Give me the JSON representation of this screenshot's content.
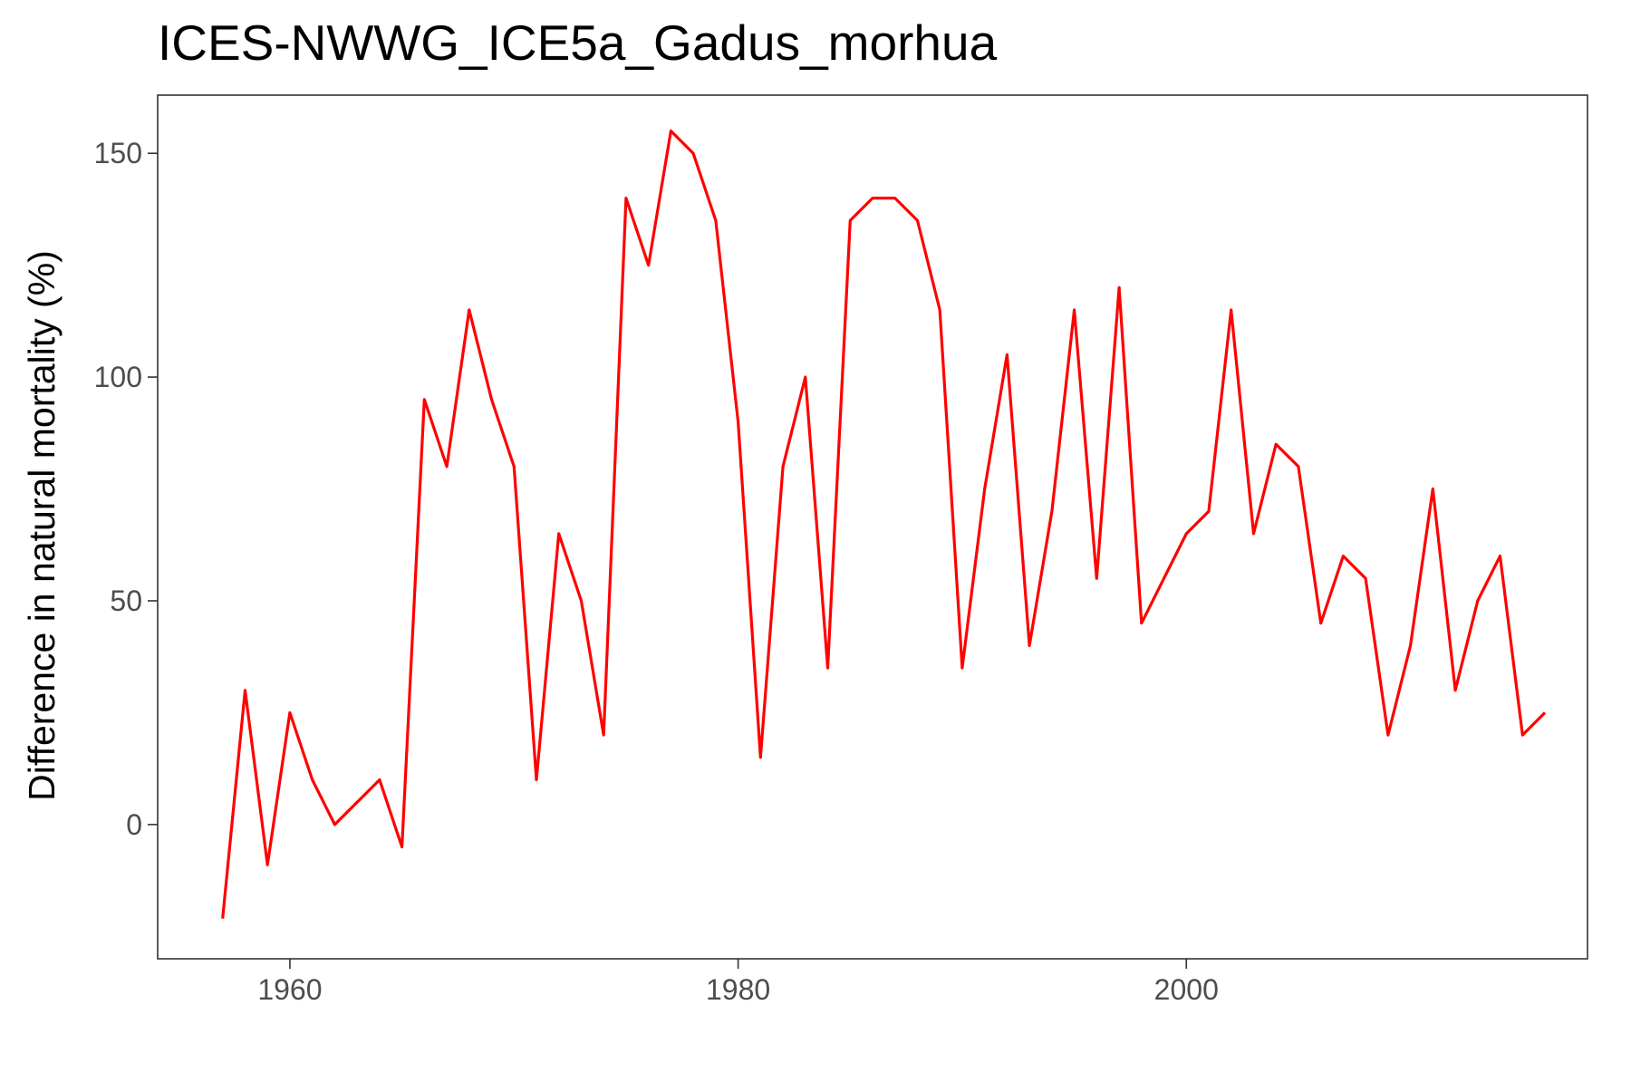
{
  "chart_data": {
    "type": "line",
    "title": "ICES-NWWG_ICE5a_Gadus_morhua",
    "xlabel": "",
    "ylabel": "Difference in natural mortality (%)",
    "xlim": [
      1954.1,
      2017.9
    ],
    "ylim": [
      -30,
      163
    ],
    "x_ticks": [
      1960,
      1980,
      2000
    ],
    "y_ticks": [
      0,
      50,
      100,
      150
    ],
    "grid": false,
    "legend": "none",
    "line_color": "#ff0000",
    "series": [
      {
        "x": [
          1957,
          1958,
          1959,
          1960,
          1961,
          1962,
          1963,
          1964,
          1965,
          1966,
          1967,
          1968,
          1969,
          1970,
          1971,
          1972,
          1973,
          1974,
          1975,
          1976,
          1977,
          1978,
          1979,
          1980,
          1981,
          1982,
          1983,
          1984,
          1985,
          1986,
          1987,
          1988,
          1989,
          1990,
          1991,
          1992,
          1993,
          1994,
          1995,
          1996,
          1997,
          1998,
          1999,
          2000,
          2001,
          2002,
          2003,
          2004,
          2005,
          2006,
          2007,
          2008,
          2009,
          2010,
          2011,
          2012,
          2013,
          2014,
          2015,
          2016
        ],
        "values": [
          -21,
          30,
          -9,
          25,
          10,
          0,
          5,
          10,
          -5,
          95,
          80,
          115,
          95,
          80,
          10,
          65,
          50,
          20,
          140,
          125,
          155,
          150,
          135,
          90,
          15,
          80,
          100,
          35,
          135,
          140,
          140,
          135,
          115,
          35,
          75,
          105,
          40,
          70,
          115,
          55,
          120,
          45,
          55,
          65,
          70,
          115,
          65,
          85,
          80,
          45,
          60,
          55,
          20,
          40,
          75,
          30,
          50,
          60,
          20,
          25
        ]
      }
    ]
  }
}
